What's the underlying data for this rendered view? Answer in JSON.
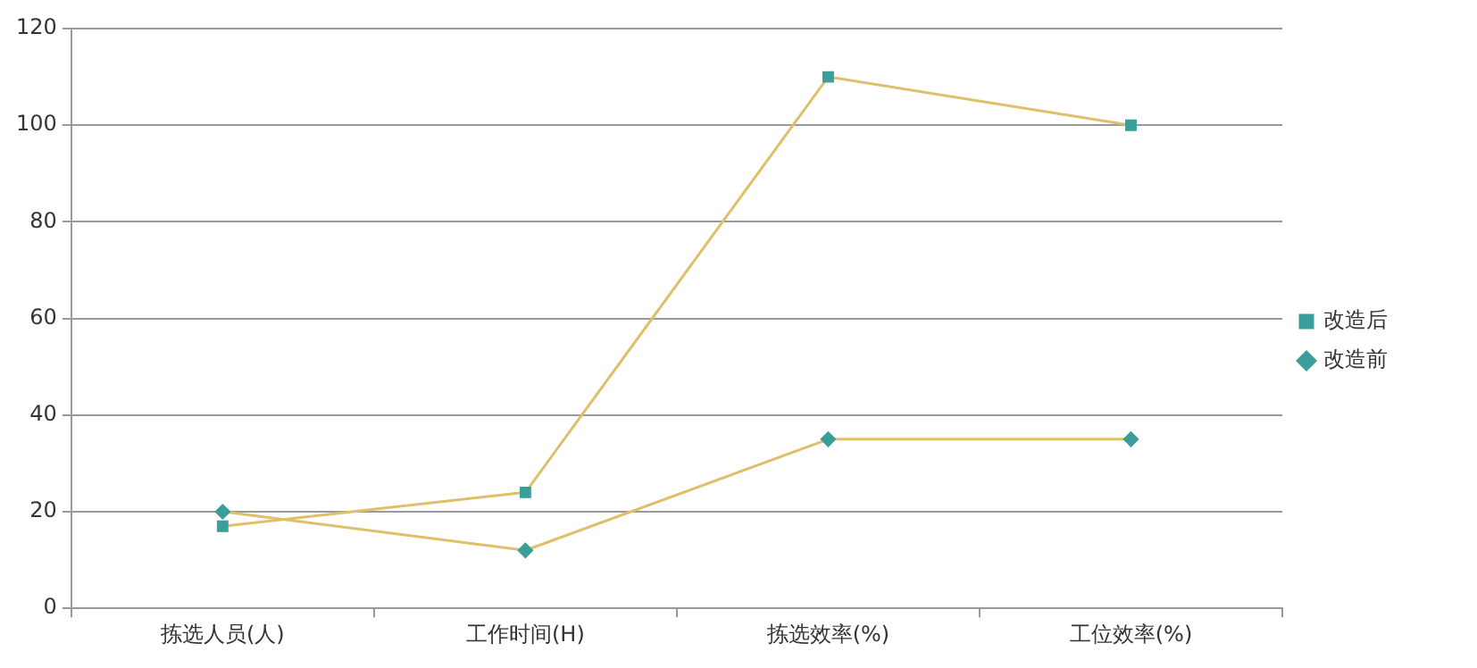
{
  "chart_data": {
    "type": "line",
    "categories": [
      "拣选人员(人)",
      "工作时间(H)",
      "拣选效率(%)",
      "工位效率(%)"
    ],
    "series": [
      {
        "name": "改造后",
        "color": "#e0bf6b",
        "marker": "square",
        "values": [
          17,
          24,
          110,
          100
        ]
      },
      {
        "name": "改造前",
        "color": "#e0bf6b",
        "marker": "diamond",
        "values": [
          20,
          12,
          35,
          35
        ]
      }
    ],
    "ylim": [
      0,
      120
    ],
    "yticks": [
      0,
      20,
      40,
      60,
      80,
      100,
      120
    ],
    "grid": "y",
    "legend": "right",
    "line_style": "solid"
  }
}
